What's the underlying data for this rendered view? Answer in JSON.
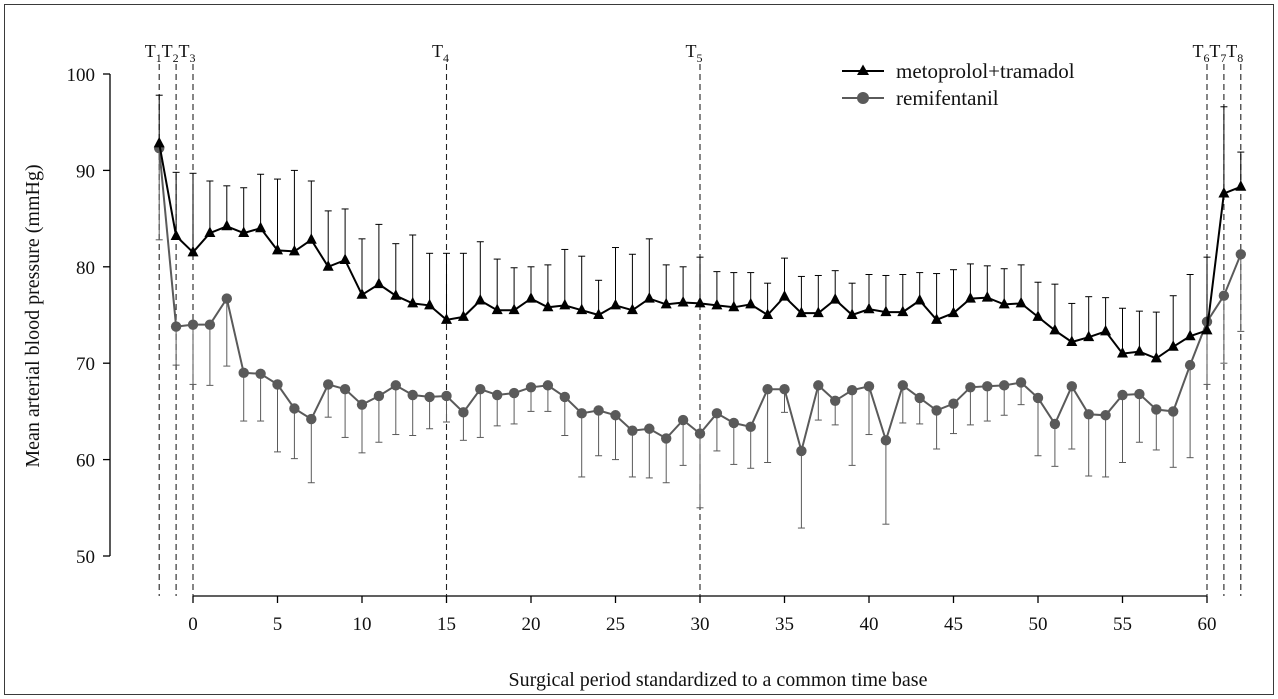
{
  "chart_data": {
    "type": "line",
    "title": "",
    "xlabel": "Surgical period standardized to a common time base",
    "ylabel": "Mean arterial blood pressure (mmHg)",
    "xlim": [
      -2.2,
      62.6
    ],
    "ylim": [
      45.5,
      101.5
    ],
    "xticks": [
      0,
      5,
      10,
      15,
      20,
      25,
      30,
      35,
      40,
      45,
      50,
      55,
      60
    ],
    "yticks": [
      50,
      60,
      70,
      80,
      90,
      100
    ],
    "legend_position": "top-right",
    "grid": false,
    "time_markers": [
      {
        "base": "T",
        "sub": "1",
        "x": -2
      },
      {
        "base": "T",
        "sub": "2",
        "x": -1
      },
      {
        "base": "T",
        "sub": "3",
        "x": 0
      },
      {
        "base": "T",
        "sub": "4",
        "x": 15
      },
      {
        "base": "T",
        "sub": "5",
        "x": 30
      },
      {
        "base": "T",
        "sub": "6",
        "x": 60
      },
      {
        "base": "T",
        "sub": "7",
        "x": 61
      },
      {
        "base": "T",
        "sub": "8",
        "x": 62
      }
    ],
    "x": [
      -2,
      -1,
      0,
      1,
      2,
      3,
      4,
      5,
      6,
      7,
      8,
      9,
      10,
      11,
      12,
      13,
      14,
      15,
      16,
      17,
      18,
      19,
      20,
      21,
      22,
      23,
      24,
      25,
      26,
      27,
      28,
      29,
      30,
      31,
      32,
      33,
      34,
      35,
      36,
      37,
      38,
      39,
      40,
      41,
      42,
      43,
      44,
      45,
      46,
      47,
      48,
      49,
      50,
      51,
      52,
      53,
      54,
      55,
      56,
      57,
      58,
      59,
      60,
      61,
      62
    ],
    "series": [
      {
        "name": "metoprolol+tramadol",
        "marker": "triangle",
        "color": "#000000",
        "values": [
          92.8,
          83.2,
          81.5,
          83.5,
          84.2,
          83.5,
          84.0,
          81.7,
          81.6,
          82.8,
          80.0,
          80.7,
          77.1,
          78.2,
          77.0,
          76.2,
          76.0,
          74.5,
          74.8,
          76.5,
          75.5,
          75.5,
          76.7,
          75.8,
          76.0,
          75.5,
          75.0,
          76.0,
          75.5,
          76.7,
          76.1,
          76.3,
          76.2,
          76.0,
          75.8,
          76.1,
          75.0,
          76.9,
          75.2,
          75.2,
          76.6,
          75.0,
          75.6,
          75.3,
          75.3,
          76.5,
          74.5,
          75.2,
          76.7,
          76.8,
          76.1,
          76.2,
          74.8,
          73.4,
          72.2,
          72.7,
          73.3,
          71.0,
          71.2,
          70.5,
          71.7,
          72.8,
          73.4,
          87.6,
          88.3
        ],
        "errors": [
          5.0,
          6.6,
          8.2,
          5.4,
          4.2,
          4.7,
          5.6,
          7.4,
          8.4,
          6.1,
          5.8,
          5.3,
          5.8,
          6.2,
          5.4,
          7.1,
          5.4,
          6.9,
          6.6,
          6.1,
          5.3,
          4.4,
          3.3,
          4.4,
          5.8,
          5.6,
          3.6,
          6.0,
          5.8,
          6.2,
          4.1,
          3.7,
          4.8,
          3.5,
          3.6,
          3.3,
          3.3,
          4.0,
          3.8,
          3.9,
          3.0,
          3.3,
          3.6,
          3.8,
          3.9,
          2.9,
          4.8,
          4.5,
          3.6,
          3.3,
          3.7,
          4.0,
          3.6,
          4.8,
          4.0,
          4.2,
          3.5,
          4.7,
          4.2,
          4.8,
          5.3,
          6.4,
          7.6,
          9.0,
          3.6
        ]
      },
      {
        "name": "remifentanil",
        "marker": "circle",
        "color": "#5a5a5a",
        "values": [
          92.3,
          73.8,
          74.0,
          74.0,
          76.7,
          69.0,
          68.9,
          67.8,
          65.3,
          64.2,
          67.8,
          67.3,
          65.7,
          66.6,
          67.7,
          66.7,
          66.5,
          66.6,
          64.9,
          67.3,
          66.7,
          66.9,
          67.5,
          67.7,
          66.5,
          64.8,
          65.1,
          64.6,
          63.0,
          63.2,
          62.2,
          64.1,
          62.7,
          64.8,
          63.8,
          63.4,
          67.3,
          67.3,
          60.9,
          67.7,
          66.1,
          67.2,
          67.6,
          62.0,
          67.7,
          66.4,
          65.1,
          65.8,
          67.5,
          67.6,
          67.7,
          68.0,
          66.4,
          63.7,
          67.6,
          64.7,
          64.6,
          66.7,
          66.8,
          65.2,
          65.0,
          69.8,
          74.3,
          77.0,
          81.3
        ],
        "errors": [
          9.5,
          4.0,
          6.2,
          6.3,
          7.0,
          5.0,
          4.9,
          7.0,
          5.2,
          6.6,
          3.4,
          5.0,
          5.0,
          4.8,
          5.1,
          4.2,
          3.3,
          2.7,
          2.9,
          5.0,
          3.2,
          3.2,
          2.5,
          2.7,
          4.0,
          6.6,
          4.7,
          4.6,
          4.8,
          5.1,
          4.6,
          4.7,
          7.7,
          3.9,
          4.3,
          4.3,
          7.6,
          2.4,
          8.0,
          3.6,
          2.5,
          7.8,
          5.0,
          8.7,
          3.9,
          2.7,
          4.0,
          3.1,
          3.9,
          3.6,
          3.1,
          2.3,
          6.0,
          4.4,
          6.5,
          6.4,
          6.4,
          7.0,
          5.0,
          4.2,
          5.8,
          9.6,
          6.5,
          7.0,
          8.0
        ]
      }
    ]
  }
}
